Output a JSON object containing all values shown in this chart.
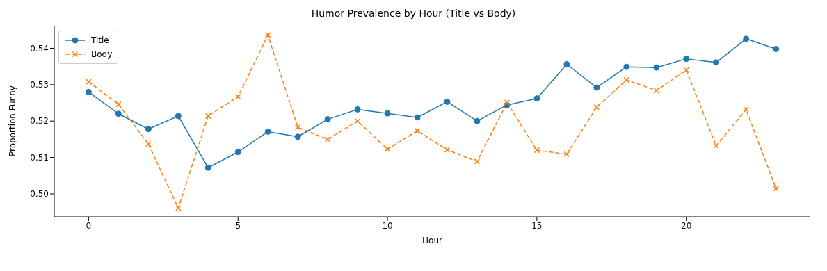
{
  "chart_data": {
    "type": "line",
    "title": "Humor Prevalence by Hour (Title vs Body)",
    "xlabel": "Hour",
    "ylabel": "Proportion Funny",
    "x": [
      0,
      1,
      2,
      3,
      4,
      5,
      6,
      7,
      8,
      9,
      10,
      11,
      12,
      13,
      14,
      15,
      16,
      17,
      18,
      19,
      20,
      21,
      22,
      23
    ],
    "series": [
      {
        "name": "Title",
        "color": "#1f77b4",
        "marker": "circle",
        "line_style": "solid",
        "values": [
          0.528,
          0.522,
          0.5178,
          0.5214,
          0.5072,
          0.5115,
          0.5171,
          0.5157,
          0.5205,
          0.5232,
          0.5221,
          0.521,
          0.5253,
          0.52,
          0.5244,
          0.5262,
          0.5356,
          0.5292,
          0.5349,
          0.5347,
          0.5371,
          0.5361,
          0.5426,
          0.5398
        ]
      },
      {
        "name": "Body",
        "color": "#ff7f0e",
        "marker": "cross",
        "line_style": "dashed",
        "values": [
          0.5308,
          0.5246,
          0.5137,
          0.4961,
          0.5214,
          0.5267,
          0.5436,
          0.5183,
          0.515,
          0.52,
          0.5123,
          0.5173,
          0.5121,
          0.5089,
          0.5251,
          0.512,
          0.5109,
          0.5238,
          0.5313,
          0.5284,
          0.534,
          0.5132,
          0.5232,
          0.5015
        ]
      }
    ],
    "xlim": [
      -1.15,
      24.15
    ],
    "xticks": [
      0,
      5,
      10,
      15,
      20
    ],
    "ylim": [
      0.4937,
      0.546
    ],
    "yticks": [
      {
        "value": 0.5,
        "label": "0.50"
      },
      {
        "value": 0.51,
        "label": "0.51"
      },
      {
        "value": 0.52,
        "label": "0.52"
      },
      {
        "value": 0.53,
        "label": "0.53"
      },
      {
        "value": 0.54,
        "label": "0.54"
      }
    ],
    "grid": false,
    "legend": "top left"
  }
}
